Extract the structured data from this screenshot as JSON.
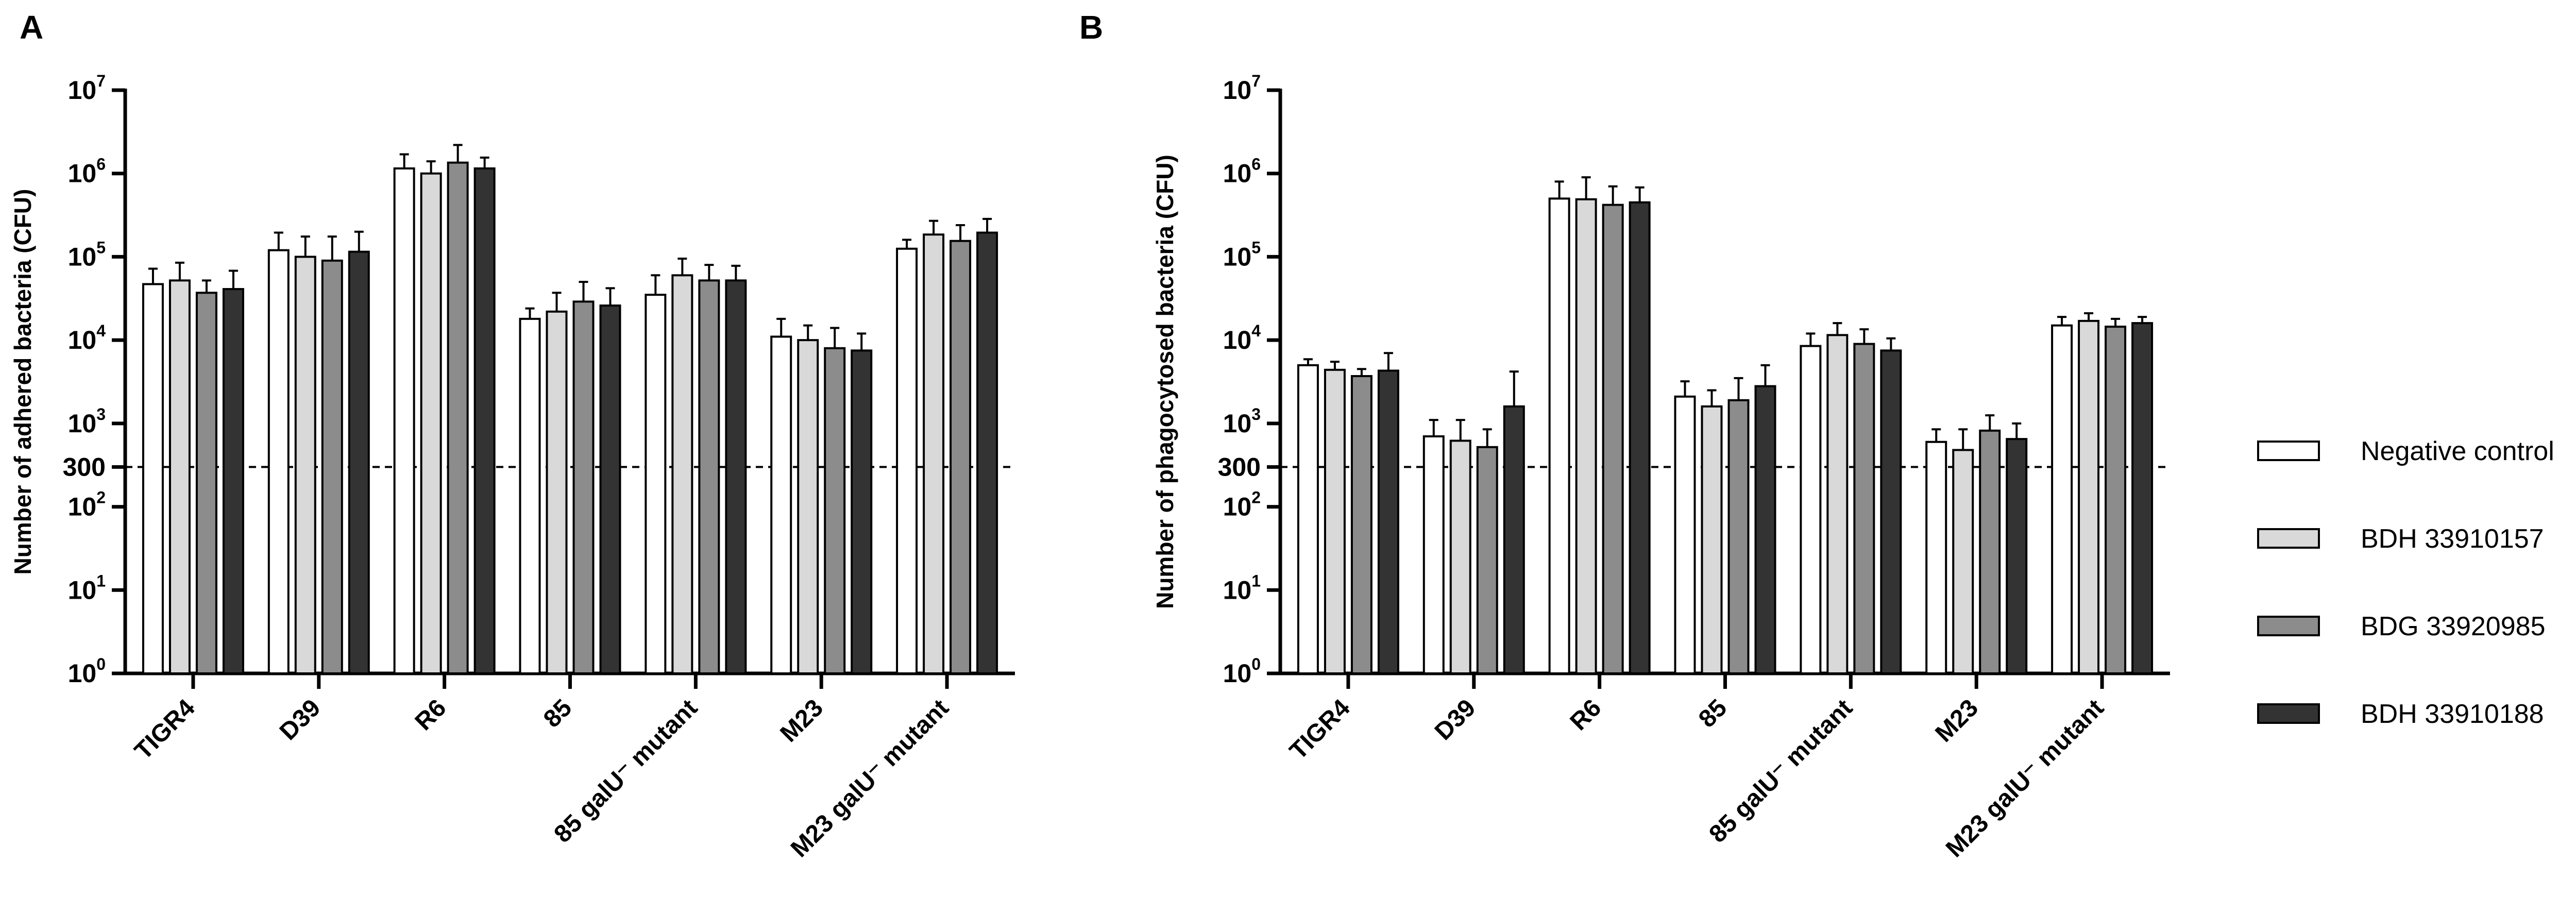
{
  "legend": [
    {
      "label": "Negative control",
      "color": "#ffffff"
    },
    {
      "label": "BDH 33910157",
      "color": "#d9d9d9"
    },
    {
      "label": "BDG 33920985",
      "color": "#8c8c8c"
    },
    {
      "label": "BDH 33910188",
      "color": "#333333"
    }
  ],
  "chart_data": [
    {
      "panel": "A",
      "type": "bar",
      "ylabel": "Number of adhered bacteria (CFU)",
      "yscale": "log",
      "ylim": [
        1,
        10000000
      ],
      "yticks": [
        1,
        10,
        100,
        1000,
        10000,
        100000,
        1000000,
        10000000
      ],
      "yextra_tick": {
        "value": 300,
        "label": "300"
      },
      "threshold": 300,
      "grid": false,
      "legend_position": "right",
      "categories": [
        "TIGR4",
        "D39",
        "R6",
        "85",
        "85 galU⁻ mutant",
        "M23",
        "M23 galU⁻ mutant"
      ],
      "series": [
        {
          "name": "Negative control",
          "values": [
            47000,
            120000,
            1150000,
            18000,
            35000,
            11000,
            125000
          ],
          "errors": [
            72000,
            195000,
            1700000,
            24000,
            60000,
            18000,
            160000
          ]
        },
        {
          "name": "BDH 33910157",
          "values": [
            52000,
            100000,
            1000000,
            22000,
            60000,
            10000,
            185000
          ],
          "errors": [
            85000,
            175000,
            1400000,
            37000,
            95000,
            15000,
            270000
          ]
        },
        {
          "name": "BDG 33920985",
          "values": [
            37000,
            90000,
            1350000,
            29000,
            52000,
            8000,
            155000
          ],
          "errors": [
            52000,
            175000,
            2200000,
            50000,
            80000,
            14000,
            240000
          ]
        },
        {
          "name": "BDH 33910188",
          "values": [
            41000,
            115000,
            1150000,
            26000,
            52000,
            7500,
            195000
          ],
          "errors": [
            68000,
            200000,
            1550000,
            42000,
            78000,
            12000,
            285000
          ]
        }
      ]
    },
    {
      "panel": "B",
      "type": "bar",
      "ylabel": "Number of phagocytosed bacteria (CFU)",
      "yscale": "log",
      "ylim": [
        1,
        10000000
      ],
      "yticks": [
        1,
        10,
        100,
        1000,
        10000,
        100000,
        1000000,
        10000000
      ],
      "yextra_tick": {
        "value": 300,
        "label": "300"
      },
      "threshold": 300,
      "grid": false,
      "legend_position": "right",
      "categories": [
        "TIGR4",
        "D39",
        "R6",
        "85",
        "85 galU⁻ mutant",
        "M23",
        "M23 galU⁻ mutant"
      ],
      "series": [
        {
          "name": "Negative control",
          "values": [
            5000,
            700,
            500000,
            2100,
            8500,
            600,
            15000
          ],
          "errors": [
            5900,
            1100,
            800000,
            3200,
            12000,
            850,
            19000
          ]
        },
        {
          "name": "BDH 33910157",
          "values": [
            4400,
            620,
            490000,
            1600,
            11500,
            480,
            17000
          ],
          "errors": [
            5500,
            1100,
            900000,
            2500,
            16000,
            850,
            21000
          ]
        },
        {
          "name": "BDG 33920985",
          "values": [
            3700,
            520,
            420000,
            1900,
            9000,
            820,
            14500
          ],
          "errors": [
            4500,
            850,
            700000,
            3500,
            13500,
            1250,
            18000
          ]
        },
        {
          "name": "BDH 33910188",
          "values": [
            4300,
            1600,
            450000,
            2800,
            7500,
            650,
            16000
          ],
          "errors": [
            7000,
            4200,
            680000,
            5000,
            10500,
            1000,
            19000
          ]
        }
      ]
    }
  ]
}
